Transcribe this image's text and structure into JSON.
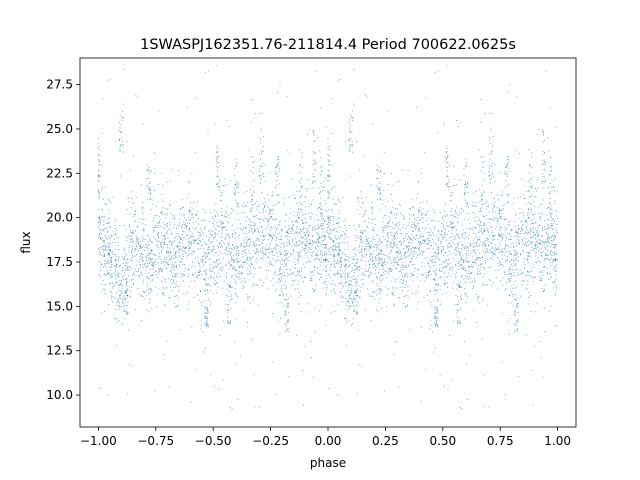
{
  "chart_data": {
    "type": "scatter",
    "title": "1SWASPJ162351.76-211814.4 Period 700622.0625s",
    "xlabel": "phase",
    "ylabel": "flux",
    "xlim": [
      -1.08,
      1.08
    ],
    "ylim": [
      8.2,
      29.0
    ],
    "xticks": [
      -1.0,
      -0.75,
      -0.5,
      -0.25,
      0.0,
      0.25,
      0.5,
      0.75,
      1.0
    ],
    "xtick_labels": [
      "−1.00",
      "−0.75",
      "−0.50",
      "−0.25",
      "0.00",
      "0.25",
      "0.50",
      "0.75",
      "1.00"
    ],
    "yticks": [
      10.0,
      12.5,
      15.0,
      17.5,
      20.0,
      22.5,
      25.0,
      27.5
    ],
    "ytick_labels": [
      "10.0",
      "12.5",
      "15.0",
      "17.5",
      "20.0",
      "22.5",
      "25.0",
      "27.5"
    ],
    "grid": false,
    "marker_color": "#1f77b4",
    "description_of_series": "phase-folded light curve, points mirrored at phase and phase-1",
    "points_per_half": 2600,
    "folded_profile": [
      [
        0.0,
        18.8,
        1.6
      ],
      [
        0.02,
        18.6,
        1.8
      ],
      [
        0.05,
        18.0,
        1.5
      ],
      [
        0.08,
        17.2,
        1.8
      ],
      [
        0.1,
        16.0,
        1.4
      ],
      [
        0.13,
        17.5,
        1.7
      ],
      [
        0.16,
        18.5,
        1.5
      ],
      [
        0.19,
        18.2,
        1.8
      ],
      [
        0.22,
        17.0,
        1.5
      ],
      [
        0.25,
        18.3,
        1.6
      ],
      [
        0.28,
        18.6,
        1.7
      ],
      [
        0.31,
        18.0,
        1.6
      ],
      [
        0.34,
        17.6,
        1.8
      ],
      [
        0.37,
        18.4,
        1.5
      ],
      [
        0.4,
        19.0,
        1.6
      ],
      [
        0.43,
        18.2,
        1.6
      ],
      [
        0.46,
        17.0,
        1.8
      ],
      [
        0.49,
        17.8,
        1.5
      ],
      [
        0.52,
        18.5,
        1.6
      ],
      [
        0.55,
        19.2,
        1.9
      ],
      [
        0.58,
        18.0,
        1.6
      ],
      [
        0.61,
        17.6,
        1.5
      ],
      [
        0.64,
        18.3,
        1.6
      ],
      [
        0.67,
        19.0,
        1.7
      ],
      [
        0.7,
        18.6,
        1.6
      ],
      [
        0.73,
        19.4,
        1.9
      ],
      [
        0.76,
        18.5,
        1.5
      ],
      [
        0.79,
        17.0,
        1.7
      ],
      [
        0.82,
        18.2,
        1.6
      ],
      [
        0.85,
        18.9,
        1.7
      ],
      [
        0.88,
        18.0,
        1.6
      ],
      [
        0.91,
        18.8,
        1.8
      ],
      [
        0.94,
        18.2,
        1.6
      ],
      [
        0.97,
        19.0,
        1.7
      ],
      [
        1.0,
        18.8,
        1.6
      ]
    ],
    "vertical_streaks": [
      [
        0.0,
        21.0,
        24.5
      ],
      [
        0.1,
        23.5,
        26.0
      ],
      [
        0.12,
        14.5,
        16.0
      ],
      [
        0.22,
        21.0,
        23.0
      ],
      [
        0.47,
        13.8,
        15.0
      ],
      [
        0.52,
        21.5,
        24.0
      ],
      [
        0.57,
        14.0,
        16.5
      ],
      [
        0.6,
        20.5,
        23.5
      ],
      [
        0.67,
        19.0,
        23.5
      ],
      [
        0.71,
        22.0,
        26.5
      ],
      [
        0.78,
        20.5,
        23.5
      ],
      [
        0.82,
        13.5,
        16.0
      ],
      [
        0.88,
        20.0,
        24.0
      ],
      [
        0.94,
        21.5,
        25.0
      ],
      [
        0.97,
        16.0,
        24.0
      ],
      [
        0.99,
        15.5,
        20.0
      ]
    ],
    "outlier_fraction": 0.04,
    "outlier_range": [
      9.0,
      28.8
    ]
  }
}
